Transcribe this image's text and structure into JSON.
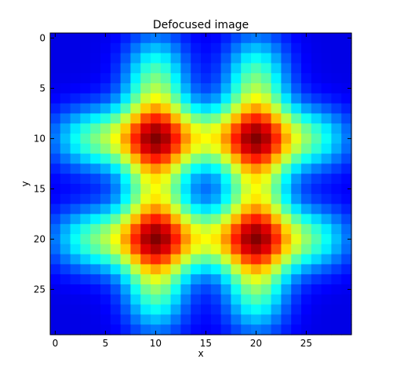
{
  "chart_data": {
    "type": "heatmap",
    "title": "Defocused image",
    "xlabel": "x",
    "ylabel": "y",
    "colormap": "jet",
    "grid": false,
    "legend": "none",
    "shape": [
      30,
      30
    ],
    "xlim": [
      -0.5,
      29.5
    ],
    "ylim": [
      29.5,
      -0.5
    ],
    "y_axis_inverted": true,
    "x_ticks": [
      0,
      5,
      10,
      15,
      20,
      25
    ],
    "y_ticks": [
      0,
      5,
      10,
      15,
      20,
      25
    ],
    "features": {
      "vertical_bands_x": [
        10,
        20
      ],
      "horizontal_bands_y": [
        10,
        20
      ],
      "band_extent": [
        0,
        29
      ],
      "peaks": [
        [
          10,
          10
        ],
        [
          20,
          10
        ],
        [
          10,
          20
        ],
        [
          20,
          20
        ]
      ]
    }
  }
}
